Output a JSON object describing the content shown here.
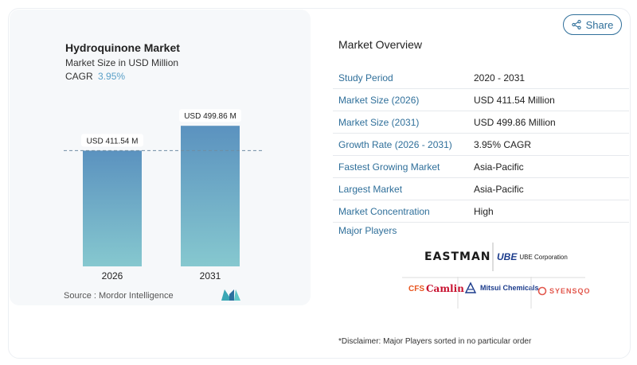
{
  "chart": {
    "title": "Hydroquinone Market",
    "subtitle": "Market Size in USD Million",
    "cagr_label": "CAGR",
    "cagr_value": "3.95%",
    "source": "Source :  Mordor Intelligence"
  },
  "chart_data": {
    "type": "bar",
    "categories": [
      "2026",
      "2031"
    ],
    "values": [
      411.54,
      499.86
    ],
    "data_labels": [
      "USD 411.54 M",
      "USD 499.86 M"
    ],
    "title": "Hydroquinone Market",
    "subtitle": "Market Size in USD Million",
    "xlabel": "",
    "ylabel": "",
    "ylim": [
      0,
      540
    ],
    "grid": false,
    "reference_line_value": 411.54,
    "colors": {
      "bar_top": "#5b92bf",
      "bar_bottom": "#86c8cf"
    }
  },
  "share": {
    "label": "Share",
    "icon": "share-icon"
  },
  "overview": {
    "title": "Market Overview",
    "rows": [
      {
        "label": "Study Period",
        "value": "2020 - 2031"
      },
      {
        "label": "Market Size (2026)",
        "value": "USD 411.54 Million"
      },
      {
        "label": "Market Size (2031)",
        "value": "USD 499.86 Million"
      },
      {
        "label": "Growth Rate (2026 - 2031)",
        "value": "3.95% CAGR"
      },
      {
        "label": "Fastest Growing Market",
        "value": "Asia-Pacific"
      },
      {
        "label": "Largest Market",
        "value": "Asia-Pacific"
      },
      {
        "label": "Market Concentration",
        "value": "High"
      }
    ],
    "players_label": "Major Players"
  },
  "players": {
    "eastman": "EASTMAN",
    "ube_mark": "UBE",
    "ube_corp": "UBE Corporation",
    "camlin_cfs": "CFS",
    "camlin": "Camlin",
    "mitsui": "Mitsui Chemicals",
    "syensqo": "SYENSQO"
  },
  "disclaimer": "*Disclaimer: Major Players sorted in no particular order",
  "colors": {
    "accent": "#2f6f9a",
    "label_blue": "#5aa0c8"
  }
}
